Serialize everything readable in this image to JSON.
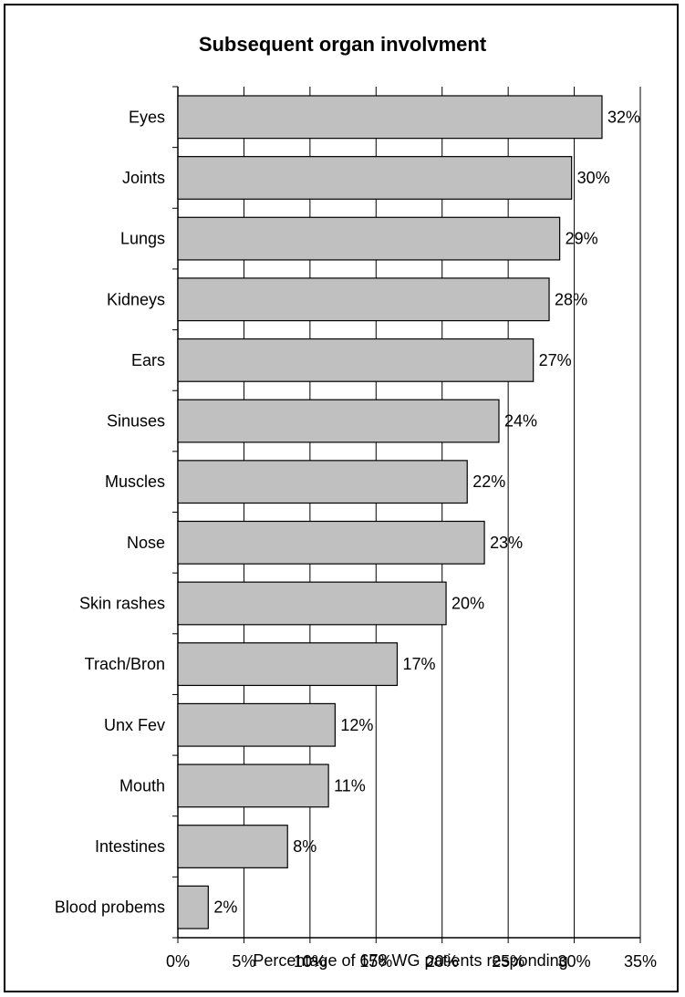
{
  "chart_data": {
    "type": "bar",
    "orientation": "horizontal",
    "title": "Subsequent organ involvment",
    "xlabel": "Percentage of 678 WG patients responding",
    "ylabel": "",
    "xlim": [
      0,
      35
    ],
    "x_ticks": [
      "0%",
      "5%",
      "10%",
      "15%",
      "20%",
      "25%",
      "30%",
      "35%"
    ],
    "grid": "vertical",
    "bar_color": "#c0c0c0",
    "categories": [
      "Eyes",
      "Joints",
      "Lungs",
      "Kidneys",
      "Ears",
      "Sinuses",
      "Muscles",
      "Nose",
      "Skin rashes",
      "Trach/Bron",
      "Unx Fev",
      "Mouth",
      "Intestines",
      "Blood probems"
    ],
    "values": [
      32.1,
      29.8,
      28.9,
      28.1,
      26.9,
      24.3,
      21.9,
      23.2,
      20.3,
      16.6,
      11.9,
      11.4,
      8.3,
      2.3
    ],
    "labels": [
      "32%",
      "30%",
      "29%",
      "28%",
      "27%",
      "24%",
      "22%",
      "23%",
      "20%",
      "17%",
      "12%",
      "11%",
      "8%",
      "2%"
    ]
  }
}
